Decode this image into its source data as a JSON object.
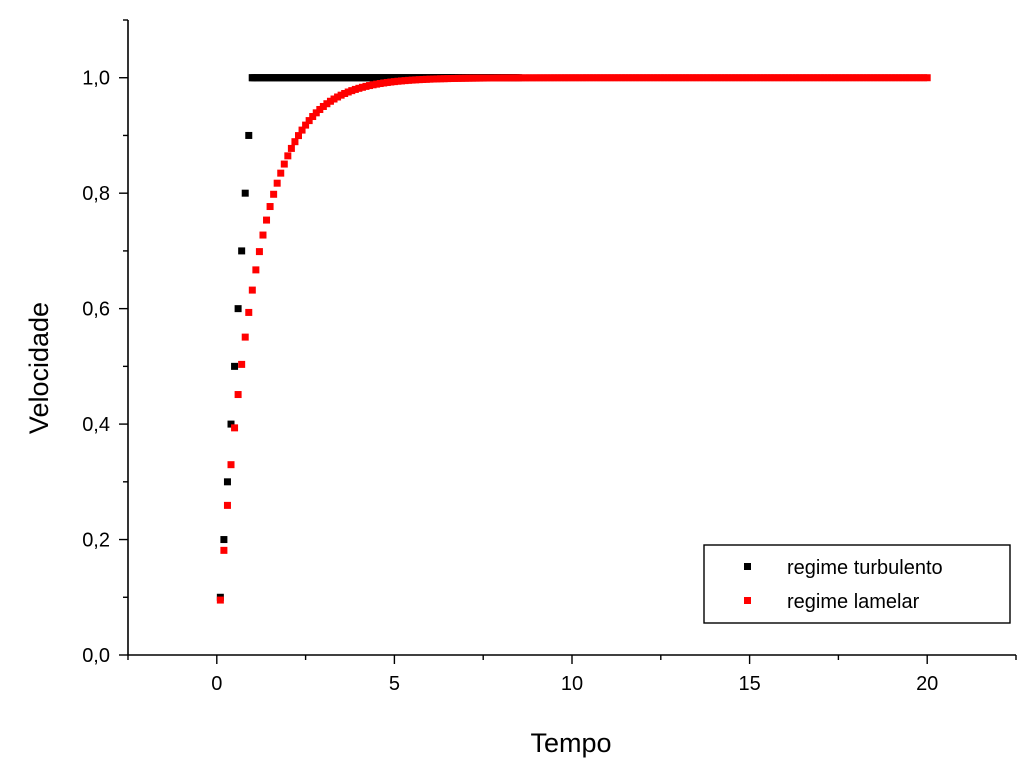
{
  "chart_data": {
    "type": "scatter",
    "title": "",
    "xlabel": "Tempo",
    "ylabel": "Velocidade",
    "xlim": [
      -2.5,
      22.5
    ],
    "ylim": [
      0.0,
      1.1
    ],
    "x_ticks": [
      {
        "value": 0,
        "label": "0"
      },
      {
        "value": 5,
        "label": "5"
      },
      {
        "value": 10,
        "label": "10"
      },
      {
        "value": 15,
        "label": "15"
      },
      {
        "value": 20,
        "label": "20"
      }
    ],
    "y_ticks": [
      {
        "value": 0.0,
        "label": "0,0"
      },
      {
        "value": 0.2,
        "label": "0,2"
      },
      {
        "value": 0.4,
        "label": "0,4"
      },
      {
        "value": 0.6,
        "label": "0,6"
      },
      {
        "value": 0.8,
        "label": "0,8"
      },
      {
        "value": 1.0,
        "label": "1,0"
      }
    ],
    "grid": false,
    "legend_position": "bottom-right",
    "series": [
      {
        "name": "regime turbulento",
        "color": "#000000",
        "marker": "square",
        "points": [
          [
            0.1,
            0.1
          ],
          [
            0.2,
            0.2
          ],
          [
            0.3,
            0.3
          ],
          [
            0.4,
            0.4
          ],
          [
            0.5,
            0.5
          ],
          [
            0.6,
            0.6
          ],
          [
            0.7,
            0.7
          ],
          [
            0.8,
            0.8
          ],
          [
            0.9,
            0.9
          ],
          [
            1.0,
            1.0
          ]
        ],
        "plateau": {
          "x_start": 1.0,
          "x_end": 8.5,
          "step": 0.05,
          "y": 1.0
        }
      },
      {
        "name": "regime lamelar",
        "color": "#ff0000",
        "marker": "square",
        "function": "1 - exp(-x)",
        "x_start": 0.1,
        "x_end": 20.0,
        "step": 0.1
      }
    ]
  }
}
